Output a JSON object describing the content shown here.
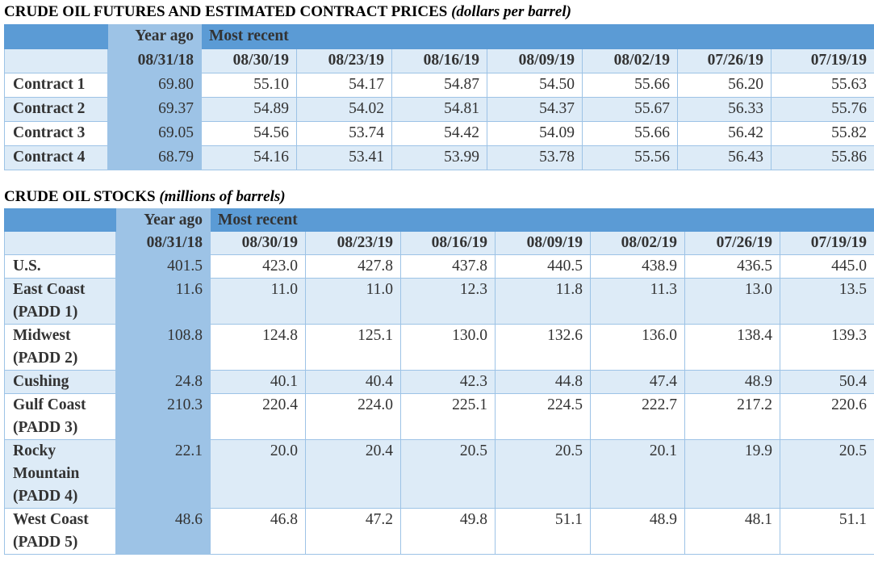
{
  "futures": {
    "title": "CRUDE OIL FUTURES AND ESTIMATED CONTRACT PRICES",
    "unit": "(dollars per barrel)",
    "year_ago_label": "Year ago",
    "most_recent_label": "Most recent",
    "dates": [
      "08/31/18",
      "08/30/19",
      "08/23/19",
      "08/16/19",
      "08/09/19",
      "08/02/19",
      "07/26/19",
      "07/19/19"
    ],
    "rows": [
      {
        "label": "Contract 1",
        "values": [
          "69.80",
          "55.10",
          "54.17",
          "54.87",
          "54.50",
          "55.66",
          "56.20",
          "55.63"
        ]
      },
      {
        "label": "Contract 2",
        "values": [
          "69.37",
          "54.89",
          "54.02",
          "54.81",
          "54.37",
          "55.67",
          "56.33",
          "55.76"
        ]
      },
      {
        "label": "Contract 3",
        "values": [
          "69.05",
          "54.56",
          "53.74",
          "54.42",
          "54.09",
          "55.66",
          "56.42",
          "55.82"
        ]
      },
      {
        "label": "Contract 4",
        "values": [
          "68.79",
          "54.16",
          "53.41",
          "53.99",
          "53.78",
          "55.56",
          "56.43",
          "55.86"
        ]
      }
    ]
  },
  "stocks": {
    "title": "CRUDE OIL STOCKS",
    "unit": "(millions of barrels)",
    "year_ago_label": "Year ago",
    "most_recent_label": "Most recent",
    "dates": [
      "08/31/18",
      "08/30/19",
      "08/23/19",
      "08/16/19",
      "08/09/19",
      "08/02/19",
      "07/26/19",
      "07/19/19"
    ],
    "rows": [
      {
        "label": "U.S.",
        "values": [
          "401.5",
          "423.0",
          "427.8",
          "437.8",
          "440.5",
          "438.9",
          "436.5",
          "445.0"
        ]
      },
      {
        "label": "East Coast (PADD 1)",
        "values": [
          "11.6",
          "11.0",
          "11.0",
          "12.3",
          "11.8",
          "11.3",
          "13.0",
          "13.5"
        ]
      },
      {
        "label": "Midwest (PADD 2)",
        "values": [
          "108.8",
          "124.8",
          "125.1",
          "130.0",
          "132.6",
          "136.0",
          "138.4",
          "139.3"
        ]
      },
      {
        "label": "Cushing",
        "values": [
          "24.8",
          "40.1",
          "40.4",
          "42.3",
          "44.8",
          "47.4",
          "48.9",
          "50.4"
        ]
      },
      {
        "label": "Gulf Coast (PADD 3)",
        "values": [
          "210.3",
          "220.4",
          "224.0",
          "225.1",
          "224.5",
          "222.7",
          "217.2",
          "220.6"
        ]
      },
      {
        "label": "Rocky Mountain (PADD 4)",
        "values": [
          "22.1",
          "20.0",
          "20.4",
          "20.5",
          "20.5",
          "20.1",
          "19.9",
          "20.5"
        ]
      },
      {
        "label": "West Coast (PADD 5)",
        "values": [
          "48.6",
          "46.8",
          "47.2",
          "49.8",
          "51.1",
          "48.9",
          "48.1",
          "51.1"
        ]
      }
    ]
  },
  "colors": {
    "header_band": "#5b9bd5",
    "year_ago_column": "#9dc3e6",
    "alt_row": "#ddebf7",
    "border": "#9dc3e6"
  }
}
